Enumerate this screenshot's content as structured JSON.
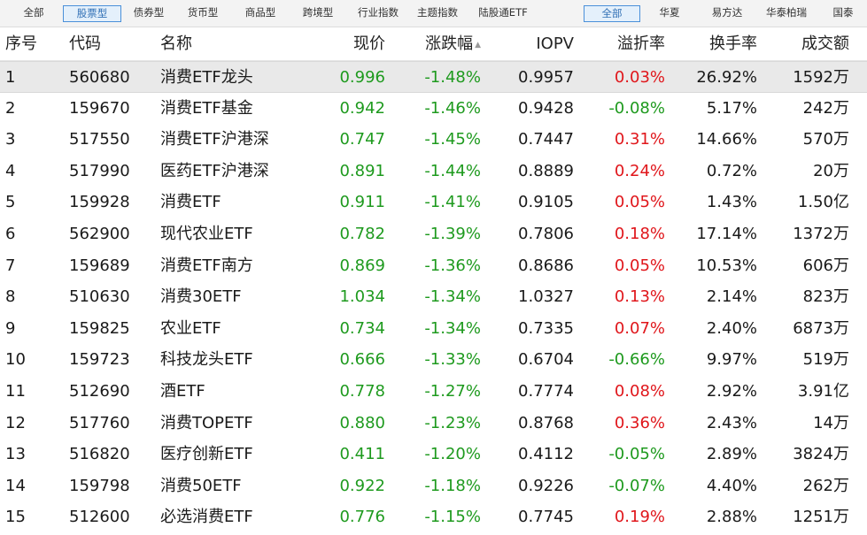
{
  "filters": {
    "type_tabs": [
      "全部",
      "股票型",
      "债券型",
      "货币型",
      "商品型",
      "跨境型",
      "行业指数",
      "主题指数",
      "陆股通ETF"
    ],
    "type_active": 1,
    "issuer_tabs": [
      "全部",
      "华夏",
      "易方达",
      "华泰柏瑞",
      "国泰"
    ],
    "issuer_active": 0
  },
  "table": {
    "columns": {
      "idx": "序号",
      "code": "代码",
      "name": "名称",
      "price": "现价",
      "change": "涨跌幅",
      "iopv": "IOPV",
      "premium": "溢折率",
      "turnover": "换手率",
      "volume": "成交额"
    },
    "sort_indicator": "▲",
    "rows": [
      {
        "idx": "1",
        "code": "560680",
        "name": "消费ETF龙头",
        "price": "0.996",
        "change": "-1.48%",
        "iopv": "0.9957",
        "premium": "0.03%",
        "premium_dir": "up",
        "turnover": "26.92%",
        "volume": "1592万"
      },
      {
        "idx": "2",
        "code": "159670",
        "name": "消费ETF基金",
        "price": "0.942",
        "change": "-1.46%",
        "iopv": "0.9428",
        "premium": "-0.08%",
        "premium_dir": "down",
        "turnover": "5.17%",
        "volume": "242万"
      },
      {
        "idx": "3",
        "code": "517550",
        "name": "消费ETF沪港深",
        "price": "0.747",
        "change": "-1.45%",
        "iopv": "0.7447",
        "premium": "0.31%",
        "premium_dir": "up",
        "turnover": "14.66%",
        "volume": "570万"
      },
      {
        "idx": "4",
        "code": "517990",
        "name": "医药ETF沪港深",
        "price": "0.891",
        "change": "-1.44%",
        "iopv": "0.8889",
        "premium": "0.24%",
        "premium_dir": "up",
        "turnover": "0.72%",
        "volume": "20万"
      },
      {
        "idx": "5",
        "code": "159928",
        "name": "消费ETF",
        "price": "0.911",
        "change": "-1.41%",
        "iopv": "0.9105",
        "premium": "0.05%",
        "premium_dir": "up",
        "turnover": "1.43%",
        "volume": "1.50亿"
      },
      {
        "idx": "6",
        "code": "562900",
        "name": "现代农业ETF",
        "price": "0.782",
        "change": "-1.39%",
        "iopv": "0.7806",
        "premium": "0.18%",
        "premium_dir": "up",
        "turnover": "17.14%",
        "volume": "1372万"
      },
      {
        "idx": "7",
        "code": "159689",
        "name": "消费ETF南方",
        "price": "0.869",
        "change": "-1.36%",
        "iopv": "0.8686",
        "premium": "0.05%",
        "premium_dir": "up",
        "turnover": "10.53%",
        "volume": "606万"
      },
      {
        "idx": "8",
        "code": "510630",
        "name": "消费30ETF",
        "price": "1.034",
        "change": "-1.34%",
        "iopv": "1.0327",
        "premium": "0.13%",
        "premium_dir": "up",
        "turnover": "2.14%",
        "volume": "823万"
      },
      {
        "idx": "9",
        "code": "159825",
        "name": "农业ETF",
        "price": "0.734",
        "change": "-1.34%",
        "iopv": "0.7335",
        "premium": "0.07%",
        "premium_dir": "up",
        "turnover": "2.40%",
        "volume": "6873万"
      },
      {
        "idx": "10",
        "code": "159723",
        "name": "科技龙头ETF",
        "price": "0.666",
        "change": "-1.33%",
        "iopv": "0.6704",
        "premium": "-0.66%",
        "premium_dir": "down",
        "turnover": "9.97%",
        "volume": "519万"
      },
      {
        "idx": "11",
        "code": "512690",
        "name": "酒ETF",
        "price": "0.778",
        "change": "-1.27%",
        "iopv": "0.7774",
        "premium": "0.08%",
        "premium_dir": "up",
        "turnover": "2.92%",
        "volume": "3.91亿"
      },
      {
        "idx": "12",
        "code": "517760",
        "name": "消费TOPETF",
        "price": "0.880",
        "change": "-1.23%",
        "iopv": "0.8768",
        "premium": "0.36%",
        "premium_dir": "up",
        "turnover": "2.43%",
        "volume": "14万"
      },
      {
        "idx": "13",
        "code": "516820",
        "name": "医疗创新ETF",
        "price": "0.411",
        "change": "-1.20%",
        "iopv": "0.4112",
        "premium": "-0.05%",
        "premium_dir": "down",
        "turnover": "2.89%",
        "volume": "3824万"
      },
      {
        "idx": "14",
        "code": "159798",
        "name": "消费50ETF",
        "price": "0.922",
        "change": "-1.18%",
        "iopv": "0.9226",
        "premium": "-0.07%",
        "premium_dir": "down",
        "turnover": "4.40%",
        "volume": "262万"
      },
      {
        "idx": "15",
        "code": "512600",
        "name": "必选消费ETF",
        "price": "0.776",
        "change": "-1.15%",
        "iopv": "0.7745",
        "premium": "0.19%",
        "premium_dir": "up",
        "turnover": "2.88%",
        "volume": "1251万"
      }
    ],
    "selected_row": 0
  },
  "colors": {
    "up": "#e0161b",
    "down": "#1e9a1e",
    "tab_active_border": "#4a90d9",
    "tab_active_bg": "#e4f0fb",
    "row_selected_bg": "#e9e9e9"
  }
}
